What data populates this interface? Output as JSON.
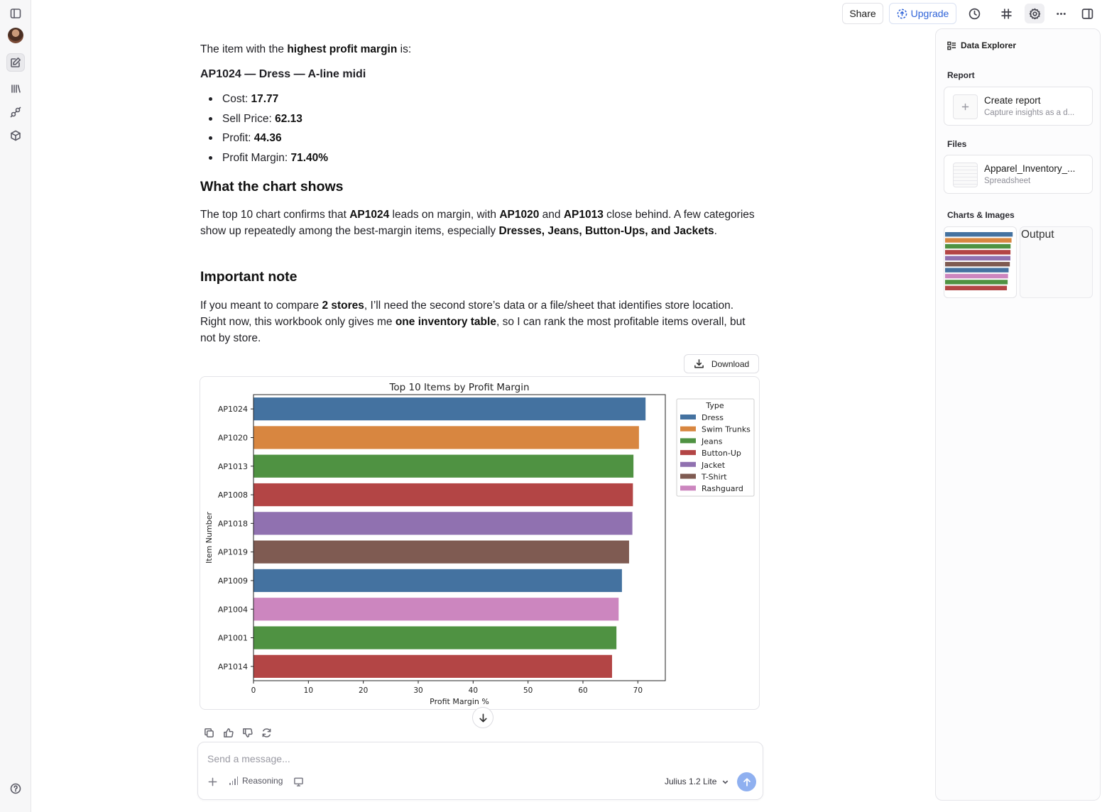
{
  "sidebar": {
    "icons": [
      "panel-toggle-icon",
      "avatar",
      "new-chat-icon",
      "library-icon",
      "integrations-icon",
      "cube-icon",
      "help-icon"
    ]
  },
  "topbar": {
    "share_label": "Share",
    "upgrade_label": "Upgrade",
    "icons": [
      "history-icon",
      "slack-icon",
      "settings-icon",
      "more-icon",
      "right-panel-icon"
    ]
  },
  "message": {
    "intro_prefix": "The item with the ",
    "intro_bold": "highest profit margin",
    "intro_suffix": " is:",
    "item_title": "AP1024 — Dress — A-line midi",
    "bullets": [
      {
        "label": "Cost: ",
        "value": "17.77"
      },
      {
        "label": "Sell Price: ",
        "value": "62.13"
      },
      {
        "label": "Profit: ",
        "value": "44.36"
      },
      {
        "label": "Profit Margin: ",
        "value": "71.40%"
      }
    ],
    "h_chart": "What the chart shows",
    "chart_para": {
      "t1": "The top 10 chart confirms that ",
      "b1": "AP1024",
      "t2": " leads on margin, with ",
      "b2": "AP1020",
      "t3": " and ",
      "b3": "AP1013",
      "t4": " close behind. A few categories show up repeatedly among the best-margin items, especially ",
      "b4": "Dresses, Jeans, Button-Ups, and Jackets",
      "t5": "."
    },
    "h_note": "Important note",
    "note_para": {
      "t1": "If you meant to compare ",
      "b1": "2 stores",
      "t2": ", I’ll need the second store’s data or a file/sheet that identifies store location. Right now, this workbook only gives me ",
      "b2": "one inventory table",
      "t3": ", so I can rank the most profitable items overall, but not by store."
    },
    "download_label": "Download"
  },
  "chart_data": {
    "type": "bar",
    "orientation": "horizontal",
    "title": "Top 10 Items by Profit Margin",
    "xlabel": "Profit Margin %",
    "ylabel": "Item Number",
    "xlim": [
      0,
      75
    ],
    "xticks": [
      0,
      10,
      20,
      30,
      40,
      50,
      60,
      70
    ],
    "categories": [
      "AP1024",
      "AP1020",
      "AP1013",
      "AP1008",
      "AP1018",
      "AP1019",
      "AP1009",
      "AP1004",
      "AP1001",
      "AP1014"
    ],
    "values": [
      71.4,
      70.2,
      69.2,
      69.1,
      69.0,
      68.4,
      67.1,
      66.5,
      66.1,
      65.3
    ],
    "types": [
      "Dress",
      "Swim Trunks",
      "Jeans",
      "Button-Up",
      "Jacket",
      "T-Shirt",
      "Dress",
      "Rashguard",
      "Jeans",
      "Button-Up"
    ],
    "legend": {
      "title": "Type",
      "placement": "outside-right",
      "entries": [
        {
          "name": "Dress",
          "color": "#4472a0"
        },
        {
          "name": "Swim Trunks",
          "color": "#d88640"
        },
        {
          "name": "Jeans",
          "color": "#4f9242"
        },
        {
          "name": "Button-Up",
          "color": "#b34545"
        },
        {
          "name": "Jacket",
          "color": "#9071b0"
        },
        {
          "name": "T-Shirt",
          "color": "#7f5b52"
        },
        {
          "name": "Rashguard",
          "color": "#cc86bf"
        }
      ]
    },
    "grid": false
  },
  "composer": {
    "placeholder": "Send a message...",
    "reasoning_label": "Reasoning",
    "model_label": "Julius 1.2 Lite"
  },
  "right_panel": {
    "title": "Data Explorer",
    "report_section": "Report",
    "report_card": {
      "title": "Create report",
      "subtitle": "Capture insights as a d..."
    },
    "files_section": "Files",
    "file_card": {
      "title": "Apparel_Inventory_...",
      "subtitle": "Spreadsheet"
    },
    "charts_section": "Charts & Images",
    "output_label": "Output"
  }
}
